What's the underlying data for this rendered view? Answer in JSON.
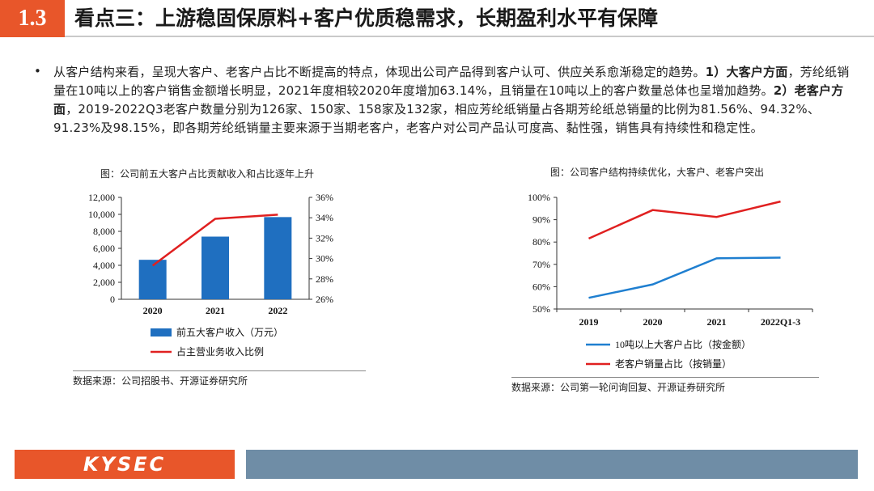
{
  "header": {
    "section_number": "1.3",
    "title": "看点三：上游稳固保原料+客户优质稳需求，长期盈利水平有保障"
  },
  "bullet": {
    "dot": "•",
    "segments": [
      {
        "text": "从客户结构来看，呈现大客户、老客户占比不断提高的特点，体现出公司产品得到客户认可、供应关系愈渐稳定的趋势。",
        "bold": false
      },
      {
        "text": "1）大客户方面",
        "bold": true
      },
      {
        "text": "，芳纶纸销量在10吨以上的客户销售金额增长明显，2021年度相较2020年度增加63.14%，且销量在10吨以上的客户数量总体也呈增加趋势。",
        "bold": false
      },
      {
        "text": "2）老客户方面",
        "bold": true
      },
      {
        "text": "，2019-2022Q3老客户数量分别为126家、150家、158家及132家，相应芳纶纸销量占各期芳纶纸总销量的比例为81.56%、94.32%、91.23%及98.15%，即各期芳纶纸销量主要来源于当期老客户，老客户对公司产品认可度高、黏性强，销售具有持续性和稳定性。",
        "bold": false
      }
    ]
  },
  "chart_left": {
    "title": "图：公司前五大客户占比贡献收入和占比逐年上升",
    "source": "数据来源：公司招股书、开源证券研究所"
  },
  "chart_right": {
    "title": "图：公司客户结构持续优化，大客户、老客户突出",
    "source": "数据来源：公司第一轮问询回复、开源证券研究所"
  },
  "footer": {
    "logo": "KYSEC"
  },
  "colors": {
    "accent": "#e8562a",
    "footer_bar": "#6f8da6",
    "bar_blue": "#1f6fc0",
    "line_red": "#e02020",
    "line_blue": "#1f7fd0"
  },
  "chart_data": [
    {
      "type": "bar",
      "categories": [
        "2020",
        "2021",
        "2022"
      ],
      "series": [
        {
          "name": "前五大客户收入（万元）",
          "type": "bar",
          "axis": "left",
          "values": [
            4650,
            7380,
            9680
          ]
        },
        {
          "name": "占主营业务收入比例",
          "type": "line",
          "axis": "right",
          "values": [
            29.3,
            33.9,
            34.3
          ]
        }
      ],
      "ylim_left": [
        0,
        12000
      ],
      "yticks_left": [
        "0",
        "2,000",
        "4,000",
        "6,000",
        "8,000",
        "10,000",
        "12,000"
      ],
      "ylim_right": [
        26,
        36
      ],
      "yticks_right": [
        "26%",
        "28%",
        "30%",
        "32%",
        "34%",
        "36%"
      ],
      "legend": "bottom"
    },
    {
      "type": "line",
      "categories": [
        "2019",
        "2020",
        "2021",
        "2022Q1-3"
      ],
      "series": [
        {
          "name": "10吨以上大客户占比（按金额）",
          "values": [
            55,
            61,
            72.7,
            73
          ]
        },
        {
          "name": "老客户销量占比（按销量）",
          "values": [
            81.56,
            94.32,
            91.23,
            98.15
          ]
        }
      ],
      "ylim": [
        50,
        100
      ],
      "yticks": [
        "50%",
        "60%",
        "70%",
        "80%",
        "90%",
        "100%"
      ],
      "legend": "bottom"
    }
  ]
}
